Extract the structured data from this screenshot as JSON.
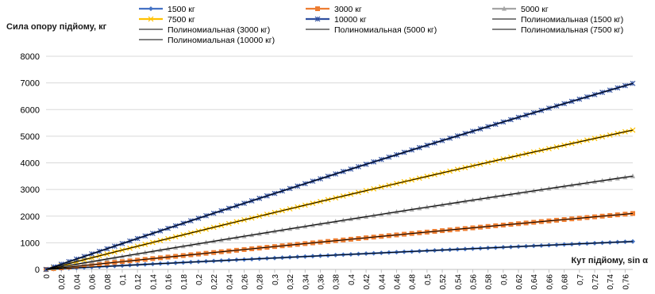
{
  "chart_data": {
    "type": "line",
    "ylabel": "Сила опору підйому, кг",
    "xlabel": "Кут підйому, sin α",
    "ylim": [
      0,
      8000
    ],
    "yticks": [
      0,
      1000,
      2000,
      3000,
      4000,
      5000,
      6000,
      7000,
      8000
    ],
    "xlim": [
      0,
      0.77
    ],
    "x_step": 0.01,
    "xtick_labels": [
      "0",
      "0,02",
      "0,04",
      "0,06",
      "0,08",
      "0,1",
      "0,12",
      "0,14",
      "0,16",
      "0,18",
      "0,2",
      "0,22",
      "0,24",
      "0,26",
      "0,28",
      "0,3",
      "0,32",
      "0,34",
      "0,36",
      "0,38",
      "0,4",
      "0,42",
      "0,44",
      "0,46",
      "0,48",
      "0,5",
      "0,52",
      "0,54",
      "0,56",
      "0,58",
      "0,6",
      "0,62",
      "0,64",
      "0,66",
      "0,68",
      "0,7",
      "0,72",
      "0,74",
      "0,76"
    ],
    "grid": "horizontal",
    "legend_position": "top",
    "series": [
      {
        "name": "1500 кг",
        "kind": "data",
        "marker": "diamond",
        "color": "#4472c4",
        "y_end": 1050,
        "curvature": 0.08
      },
      {
        "name": "3000 кг",
        "kind": "data",
        "marker": "square",
        "color": "#ed7d31",
        "y_end": 2100,
        "curvature": 0.08
      },
      {
        "name": "5000 кг",
        "kind": "data",
        "marker": "triangle",
        "color": "#a5a5a5",
        "y_end": 3500,
        "curvature": 0.08
      },
      {
        "name": "7500 кг",
        "kind": "data",
        "marker": "x",
        "color": "#ffc000",
        "y_end": 5230,
        "curvature": 0.08
      },
      {
        "name": "10000 кг",
        "kind": "data",
        "marker": "star",
        "color": "#2f4f9f",
        "y_end": 6980,
        "curvature": 0.08
      },
      {
        "name": "Полиномиальная (1500 кг)",
        "kind": "trend",
        "color": "#000000",
        "y_end": 1050,
        "curvature": 0.08
      },
      {
        "name": "Полиномиальная (3000 кг)",
        "kind": "trend",
        "color": "#000000",
        "y_end": 2100,
        "curvature": 0.08
      },
      {
        "name": "Полиномиальная (5000 кг)",
        "kind": "trend",
        "color": "#000000",
        "y_end": 3500,
        "curvature": 0.08
      },
      {
        "name": "Полиномиальная (7500 кг)",
        "kind": "trend",
        "color": "#000000",
        "y_end": 5230,
        "curvature": 0.08
      },
      {
        "name": "Полиномиальная (10000 кг)",
        "kind": "trend",
        "color": "#000000",
        "y_end": 6980,
        "curvature": 0.08
      }
    ]
  }
}
